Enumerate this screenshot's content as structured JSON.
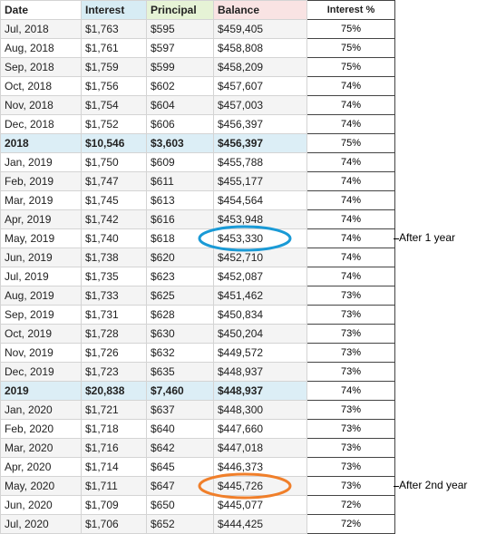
{
  "headers": [
    "Date",
    "Interest",
    "Principal",
    "Balance",
    "Interest %"
  ],
  "rows": [
    {
      "date": "Jul, 2018",
      "interest": "$1,763",
      "principal": "$595",
      "balance": "$459,405",
      "pct": "75%",
      "kind": "month"
    },
    {
      "date": "Aug, 2018",
      "interest": "$1,761",
      "principal": "$597",
      "balance": "$458,808",
      "pct": "75%",
      "kind": "month"
    },
    {
      "date": "Sep, 2018",
      "interest": "$1,759",
      "principal": "$599",
      "balance": "$458,209",
      "pct": "75%",
      "kind": "month"
    },
    {
      "date": "Oct, 2018",
      "interest": "$1,756",
      "principal": "$602",
      "balance": "$457,607",
      "pct": "74%",
      "kind": "month"
    },
    {
      "date": "Nov, 2018",
      "interest": "$1,754",
      "principal": "$604",
      "balance": "$457,003",
      "pct": "74%",
      "kind": "month"
    },
    {
      "date": "Dec, 2018",
      "interest": "$1,752",
      "principal": "$606",
      "balance": "$456,397",
      "pct": "74%",
      "kind": "month"
    },
    {
      "date": "2018",
      "interest": "$10,546",
      "principal": "$3,603",
      "balance": "$456,397",
      "pct": "75%",
      "kind": "summary"
    },
    {
      "date": "Jan, 2019",
      "interest": "$1,750",
      "principal": "$609",
      "balance": "$455,788",
      "pct": "74%",
      "kind": "month"
    },
    {
      "date": "Feb, 2019",
      "interest": "$1,747",
      "principal": "$611",
      "balance": "$455,177",
      "pct": "74%",
      "kind": "month"
    },
    {
      "date": "Mar, 2019",
      "interest": "$1,745",
      "principal": "$613",
      "balance": "$454,564",
      "pct": "74%",
      "kind": "month"
    },
    {
      "date": "Apr, 2019",
      "interest": "$1,742",
      "principal": "$616",
      "balance": "$453,948",
      "pct": "74%",
      "kind": "month"
    },
    {
      "date": "May, 2019",
      "interest": "$1,740",
      "principal": "$618",
      "balance": "$453,330",
      "pct": "74%",
      "kind": "month"
    },
    {
      "date": "Jun, 2019",
      "interest": "$1,738",
      "principal": "$620",
      "balance": "$452,710",
      "pct": "74%",
      "kind": "month"
    },
    {
      "date": "Jul, 2019",
      "interest": "$1,735",
      "principal": "$623",
      "balance": "$452,087",
      "pct": "74%",
      "kind": "month"
    },
    {
      "date": "Aug, 2019",
      "interest": "$1,733",
      "principal": "$625",
      "balance": "$451,462",
      "pct": "73%",
      "kind": "month"
    },
    {
      "date": "Sep, 2019",
      "interest": "$1,731",
      "principal": "$628",
      "balance": "$450,834",
      "pct": "73%",
      "kind": "month"
    },
    {
      "date": "Oct, 2019",
      "interest": "$1,728",
      "principal": "$630",
      "balance": "$450,204",
      "pct": "73%",
      "kind": "month"
    },
    {
      "date": "Nov, 2019",
      "interest": "$1,726",
      "principal": "$632",
      "balance": "$449,572",
      "pct": "73%",
      "kind": "month"
    },
    {
      "date": "Dec, 2019",
      "interest": "$1,723",
      "principal": "$635",
      "balance": "$448,937",
      "pct": "73%",
      "kind": "month"
    },
    {
      "date": "2019",
      "interest": "$20,838",
      "principal": "$7,460",
      "balance": "$448,937",
      "pct": "74%",
      "kind": "summary"
    },
    {
      "date": "Jan, 2020",
      "interest": "$1,721",
      "principal": "$637",
      "balance": "$448,300",
      "pct": "73%",
      "kind": "month"
    },
    {
      "date": "Feb, 2020",
      "interest": "$1,718",
      "principal": "$640",
      "balance": "$447,660",
      "pct": "73%",
      "kind": "month"
    },
    {
      "date": "Mar, 2020",
      "interest": "$1,716",
      "principal": "$642",
      "balance": "$447,018",
      "pct": "73%",
      "kind": "month"
    },
    {
      "date": "Apr, 2020",
      "interest": "$1,714",
      "principal": "$645",
      "balance": "$446,373",
      "pct": "73%",
      "kind": "month"
    },
    {
      "date": "May, 2020",
      "interest": "$1,711",
      "principal": "$647",
      "balance": "$445,726",
      "pct": "73%",
      "kind": "month"
    },
    {
      "date": "Jun, 2020",
      "interest": "$1,709",
      "principal": "$650",
      "balance": "$445,077",
      "pct": "72%",
      "kind": "month"
    },
    {
      "date": "Jul, 2020",
      "interest": "$1,706",
      "principal": "$652",
      "balance": "$444,425",
      "pct": "72%",
      "kind": "month"
    }
  ],
  "annotations": [
    {
      "text": "After 1 year",
      "color": "#1a9ad6",
      "row": 11
    },
    {
      "text": "After 2nd year",
      "color": "#f07f2a",
      "row": 24
    }
  ]
}
